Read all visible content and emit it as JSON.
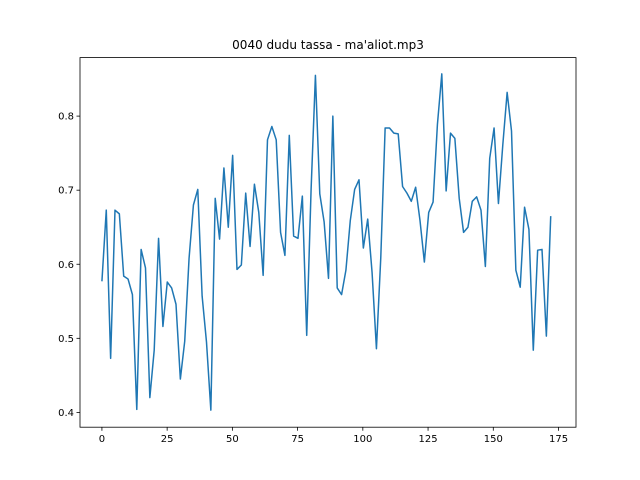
{
  "chart_data": {
    "type": "line",
    "title": "0040 dudu tassa - ma'aliot.mp3",
    "x": [
      0,
      1.67,
      3.34,
      5.01,
      6.68,
      8.35,
      10.02,
      11.69,
      13.36,
      15.03,
      16.7,
      18.37,
      20.04,
      21.71,
      23.38,
      25.05,
      26.72,
      28.39,
      30.06,
      31.73,
      33.4,
      35.07,
      36.74,
      38.41,
      40.08,
      41.75,
      43.42,
      45.09,
      46.76,
      48.43,
      50.1,
      51.77,
      53.44,
      55.11,
      56.78,
      58.45,
      60.12,
      61.79,
      63.46,
      65.13,
      66.8,
      68.47,
      70.14,
      71.81,
      73.48,
      75.15,
      76.82,
      78.49,
      80.16,
      81.83,
      83.5,
      85.17,
      86.84,
      88.51,
      90.18,
      91.85,
      93.52,
      95.19,
      96.86,
      98.53,
      100.2,
      101.87,
      103.54,
      105.21,
      106.88,
      108.55,
      110.22,
      111.89,
      113.56,
      115.23,
      116.9,
      118.57,
      120.24,
      121.91,
      123.58,
      125.25,
      126.92,
      128.59,
      130.26,
      131.93,
      133.6,
      135.27,
      136.94,
      138.61,
      140.28,
      141.95,
      143.62,
      145.29,
      146.96,
      148.63,
      150.3,
      151.97,
      153.64,
      155.31,
      156.98,
      158.65,
      160.32,
      161.99,
      163.66,
      165.33,
      167.0,
      168.67,
      170.34,
      172.01
    ],
    "series": [
      {
        "color": "#1f77b4",
        "values": [
          0.577,
          0.673,
          0.473,
          0.673,
          0.668,
          0.584,
          0.58,
          0.559,
          0.404,
          0.62,
          0.595,
          0.42,
          0.484,
          0.635,
          0.516,
          0.576,
          0.568,
          0.546,
          0.445,
          0.496,
          0.608,
          0.68,
          0.701,
          0.557,
          0.495,
          0.403,
          0.689,
          0.634,
          0.73,
          0.65,
          0.747,
          0.593,
          0.599,
          0.696,
          0.624,
          0.708,
          0.67,
          0.585,
          0.768,
          0.786,
          0.768,
          0.643,
          0.612,
          0.774,
          0.638,
          0.635,
          0.692,
          0.504,
          0.7,
          0.855,
          0.695,
          0.657,
          0.581,
          0.8,
          0.568,
          0.559,
          0.592,
          0.659,
          0.701,
          0.714,
          0.622,
          0.661,
          0.589,
          0.486,
          0.609,
          0.784,
          0.784,
          0.777,
          0.776,
          0.705,
          0.696,
          0.685,
          0.704,
          0.659,
          0.603,
          0.67,
          0.684,
          0.789,
          0.857,
          0.699,
          0.777,
          0.77,
          0.689,
          0.643,
          0.65,
          0.685,
          0.691,
          0.673,
          0.597,
          0.743,
          0.784,
          0.682,
          0.761,
          0.832,
          0.78,
          0.592,
          0.569,
          0.677,
          0.647,
          0.484,
          0.619,
          0.62,
          0.503,
          0.665
        ]
      }
    ],
    "xlim": [
      -8.4,
      181.7
    ],
    "ylim": [
      0.38,
      0.879
    ],
    "xticks": [
      0,
      25,
      50,
      75,
      100,
      125,
      150,
      175
    ],
    "yticks": [
      0.4,
      0.5,
      0.6,
      0.7,
      0.8
    ],
    "grid": false
  }
}
